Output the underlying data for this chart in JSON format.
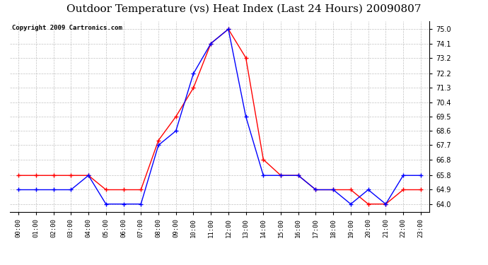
{
  "title": "Outdoor Temperature (vs) Heat Index (Last 24 Hours) 20090807",
  "copyright_text": "Copyright 2009 Cartronics.com",
  "hours": [
    "00:00",
    "01:00",
    "02:00",
    "03:00",
    "04:00",
    "05:00",
    "06:00",
    "07:00",
    "08:00",
    "09:00",
    "10:00",
    "11:00",
    "12:00",
    "13:00",
    "14:00",
    "15:00",
    "16:00",
    "17:00",
    "18:00",
    "19:00",
    "20:00",
    "21:00",
    "22:00",
    "23:00"
  ],
  "temp": [
    65.8,
    65.8,
    65.8,
    65.8,
    65.8,
    64.9,
    64.9,
    64.9,
    68.0,
    69.5,
    71.3,
    74.1,
    75.0,
    73.2,
    66.8,
    65.8,
    65.8,
    64.9,
    64.9,
    64.9,
    64.0,
    64.0,
    64.9,
    64.9
  ],
  "heat_index": [
    64.9,
    64.9,
    64.9,
    64.9,
    65.8,
    64.0,
    64.0,
    64.0,
    67.7,
    68.6,
    72.2,
    74.1,
    75.0,
    69.5,
    65.8,
    65.8,
    65.8,
    64.9,
    64.9,
    64.0,
    64.9,
    64.0,
    65.8,
    65.8
  ],
  "temp_color": "#ff0000",
  "heat_index_color": "#0000ff",
  "bg_color": "#ffffff",
  "grid_color": "#bbbbbb",
  "ylim_min": 63.5,
  "ylim_max": 75.5,
  "yticks": [
    64.0,
    64.9,
    65.8,
    66.8,
    67.7,
    68.6,
    69.5,
    70.4,
    71.3,
    72.2,
    73.2,
    74.1,
    75.0
  ],
  "title_fontsize": 11,
  "copyright_fontsize": 6.5
}
